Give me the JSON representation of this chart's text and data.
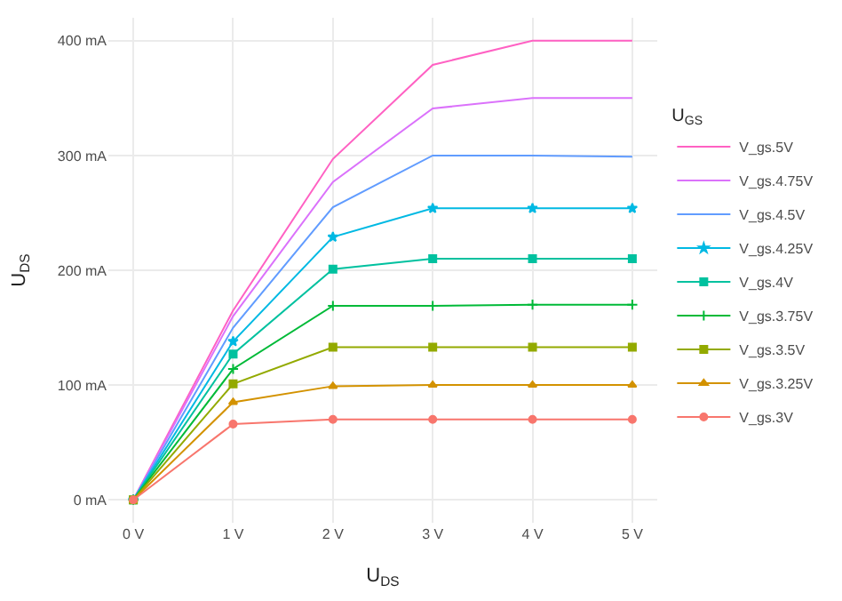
{
  "chart_data": {
    "type": "line",
    "xlabel": "U$_{DS}$",
    "ylabel": "U$_{DS}$",
    "legend_title": "U$_{GS}$",
    "x": [
      0,
      1,
      2,
      3,
      4,
      5
    ],
    "xlim": [
      -0.25,
      5.25
    ],
    "xticks": [
      {
        "value": 0,
        "label": "0 V"
      },
      {
        "value": 1,
        "label": "1 V"
      },
      {
        "value": 2,
        "label": "2 V"
      },
      {
        "value": 3,
        "label": "3 V"
      },
      {
        "value": 4,
        "label": "4 V"
      },
      {
        "value": 5,
        "label": "5 V"
      }
    ],
    "ylim": [
      -20,
      420
    ],
    "yticks": [
      {
        "value": 0,
        "label": "0 mA"
      },
      {
        "value": 100,
        "label": "100 mA"
      },
      {
        "value": 200,
        "label": "200 mA"
      },
      {
        "value": 300,
        "label": "300 mA"
      },
      {
        "value": 400,
        "label": "400 mA"
      }
    ],
    "grid": true,
    "legend": "right",
    "series": [
      {
        "name": "V_gs.5V",
        "color": "#ff61c3",
        "marker": "none",
        "values": [
          0,
          165,
          297,
          379,
          400,
          400
        ]
      },
      {
        "name": "V_gs.4.75V",
        "color": "#db72fb",
        "marker": "none",
        "values": [
          0,
          160,
          277,
          341,
          350,
          350
        ]
      },
      {
        "name": "V_gs.4.5V",
        "color": "#619cff",
        "marker": "none",
        "values": [
          0,
          150,
          255,
          300,
          300,
          299
        ]
      },
      {
        "name": "V_gs.4.25V",
        "color": "#00b9e3",
        "marker": "star",
        "values": [
          0,
          138,
          229,
          254,
          254,
          254
        ]
      },
      {
        "name": "V_gs.4V",
        "color": "#00c19f",
        "marker": "square",
        "values": [
          0,
          127,
          201,
          210,
          210,
          210
        ]
      },
      {
        "name": "V_gs.3.75V",
        "color": "#00ba38",
        "marker": "cross",
        "values": [
          0,
          114,
          169,
          169,
          170,
          170
        ]
      },
      {
        "name": "V_gs.3.5V",
        "color": "#93aa00",
        "marker": "square",
        "values": [
          0,
          101,
          133,
          133,
          133,
          133
        ]
      },
      {
        "name": "V_gs.3.25V",
        "color": "#d39200",
        "marker": "triangle",
        "values": [
          0,
          85,
          99,
          100,
          100,
          100
        ]
      },
      {
        "name": "V_gs.3V",
        "color": "#f8766d",
        "marker": "circle",
        "values": [
          0,
          66,
          70,
          70,
          70,
          70
        ]
      }
    ]
  }
}
